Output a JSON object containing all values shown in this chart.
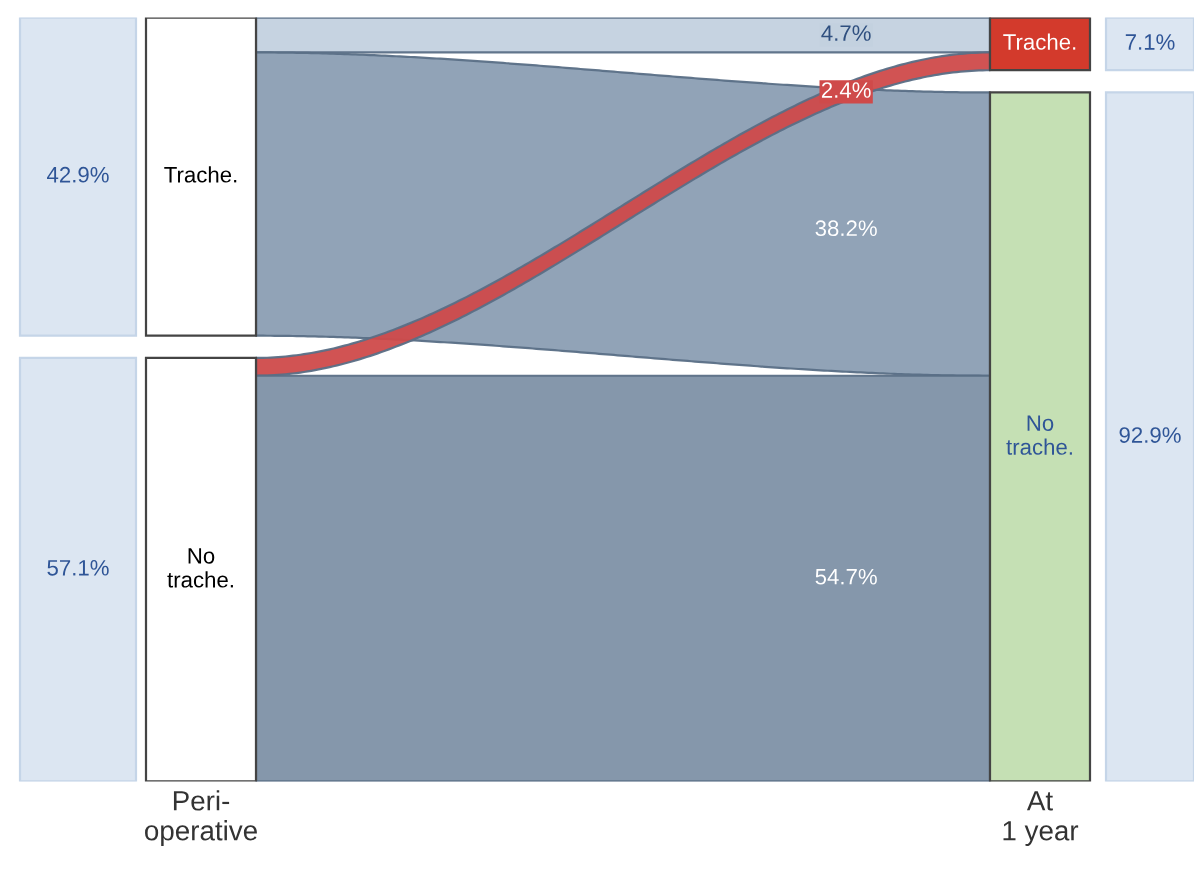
{
  "chart_data": {
    "type": "other",
    "categories": [
      "Peri-\noperative",
      "At\n1 year"
    ],
    "colors": [
      [
        "#ffffff",
        "#d33a2c"
      ],
      [
        "#ffffff",
        "#c5e0b4"
      ]
    ],
    "data_labels": true,
    "series": [
      {
        "type": "bar",
        "name": "Trache.",
        "color": "#dce6f2",
        "values": [
          42.9,
          7.1
        ],
        "value_labels": [
          "42.9%",
          "7.1%"
        ]
      },
      {
        "type": "bar",
        "name": "No\ntrache.",
        "color": "#dce6f2",
        "values": [
          57.1,
          92.9
        ],
        "value_labels": [
          "57.1%",
          "92.9%"
        ]
      },
      {
        "type": "other",
        "color": "#c3d1df",
        "values": [
          null,
          4.7
        ],
        "value_labels": [
          null,
          "4.7%"
        ]
      },
      {
        "type": "other",
        "color": "#8b9eb3",
        "values": [
          null,
          38.2
        ],
        "value_labels": [
          null,
          "38.2%"
        ]
      },
      {
        "type": "other",
        "color": "#cf4a4a",
        "values": [
          null,
          2.4
        ],
        "value_labels": [
          null,
          "2.4%"
        ]
      },
      {
        "type": "other",
        "color": "#7e91a6",
        "values": [
          null,
          54.7
        ],
        "value_labels": [
          null,
          "54.7%"
        ]
      }
    ]
  }
}
